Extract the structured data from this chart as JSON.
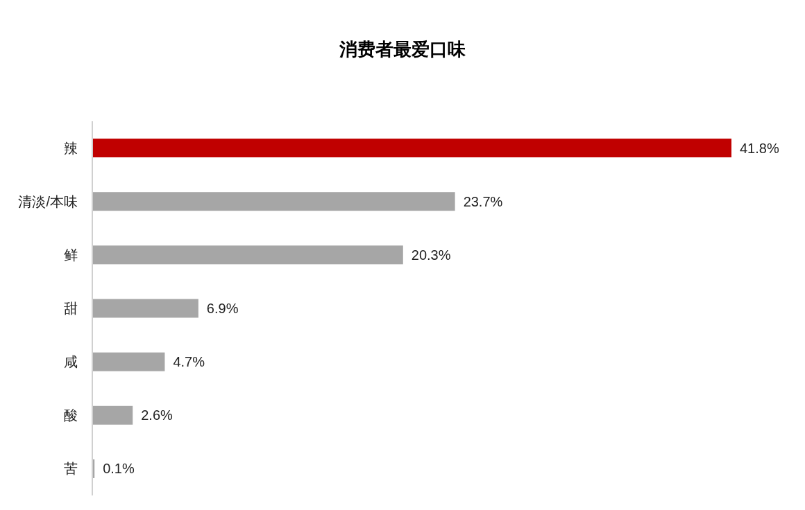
{
  "chart_data": {
    "type": "bar",
    "orientation": "horizontal",
    "title": "消费者最爱口味",
    "categories": [
      "辣",
      "清淡/本味",
      "鲜",
      "甜",
      "咸",
      "酸",
      "苦"
    ],
    "values": [
      41.8,
      23.7,
      20.3,
      6.9,
      4.7,
      2.6,
      0.1
    ],
    "colors": [
      "#c00000",
      "#a6a6a6",
      "#a6a6a6",
      "#a6a6a6",
      "#a6a6a6",
      "#a6a6a6",
      "#a6a6a6"
    ],
    "value_labels": [
      "41.8%",
      "23.7%",
      "20.3%",
      "6.9%",
      "4.7%",
      "2.6%",
      "0.1%"
    ]
  }
}
